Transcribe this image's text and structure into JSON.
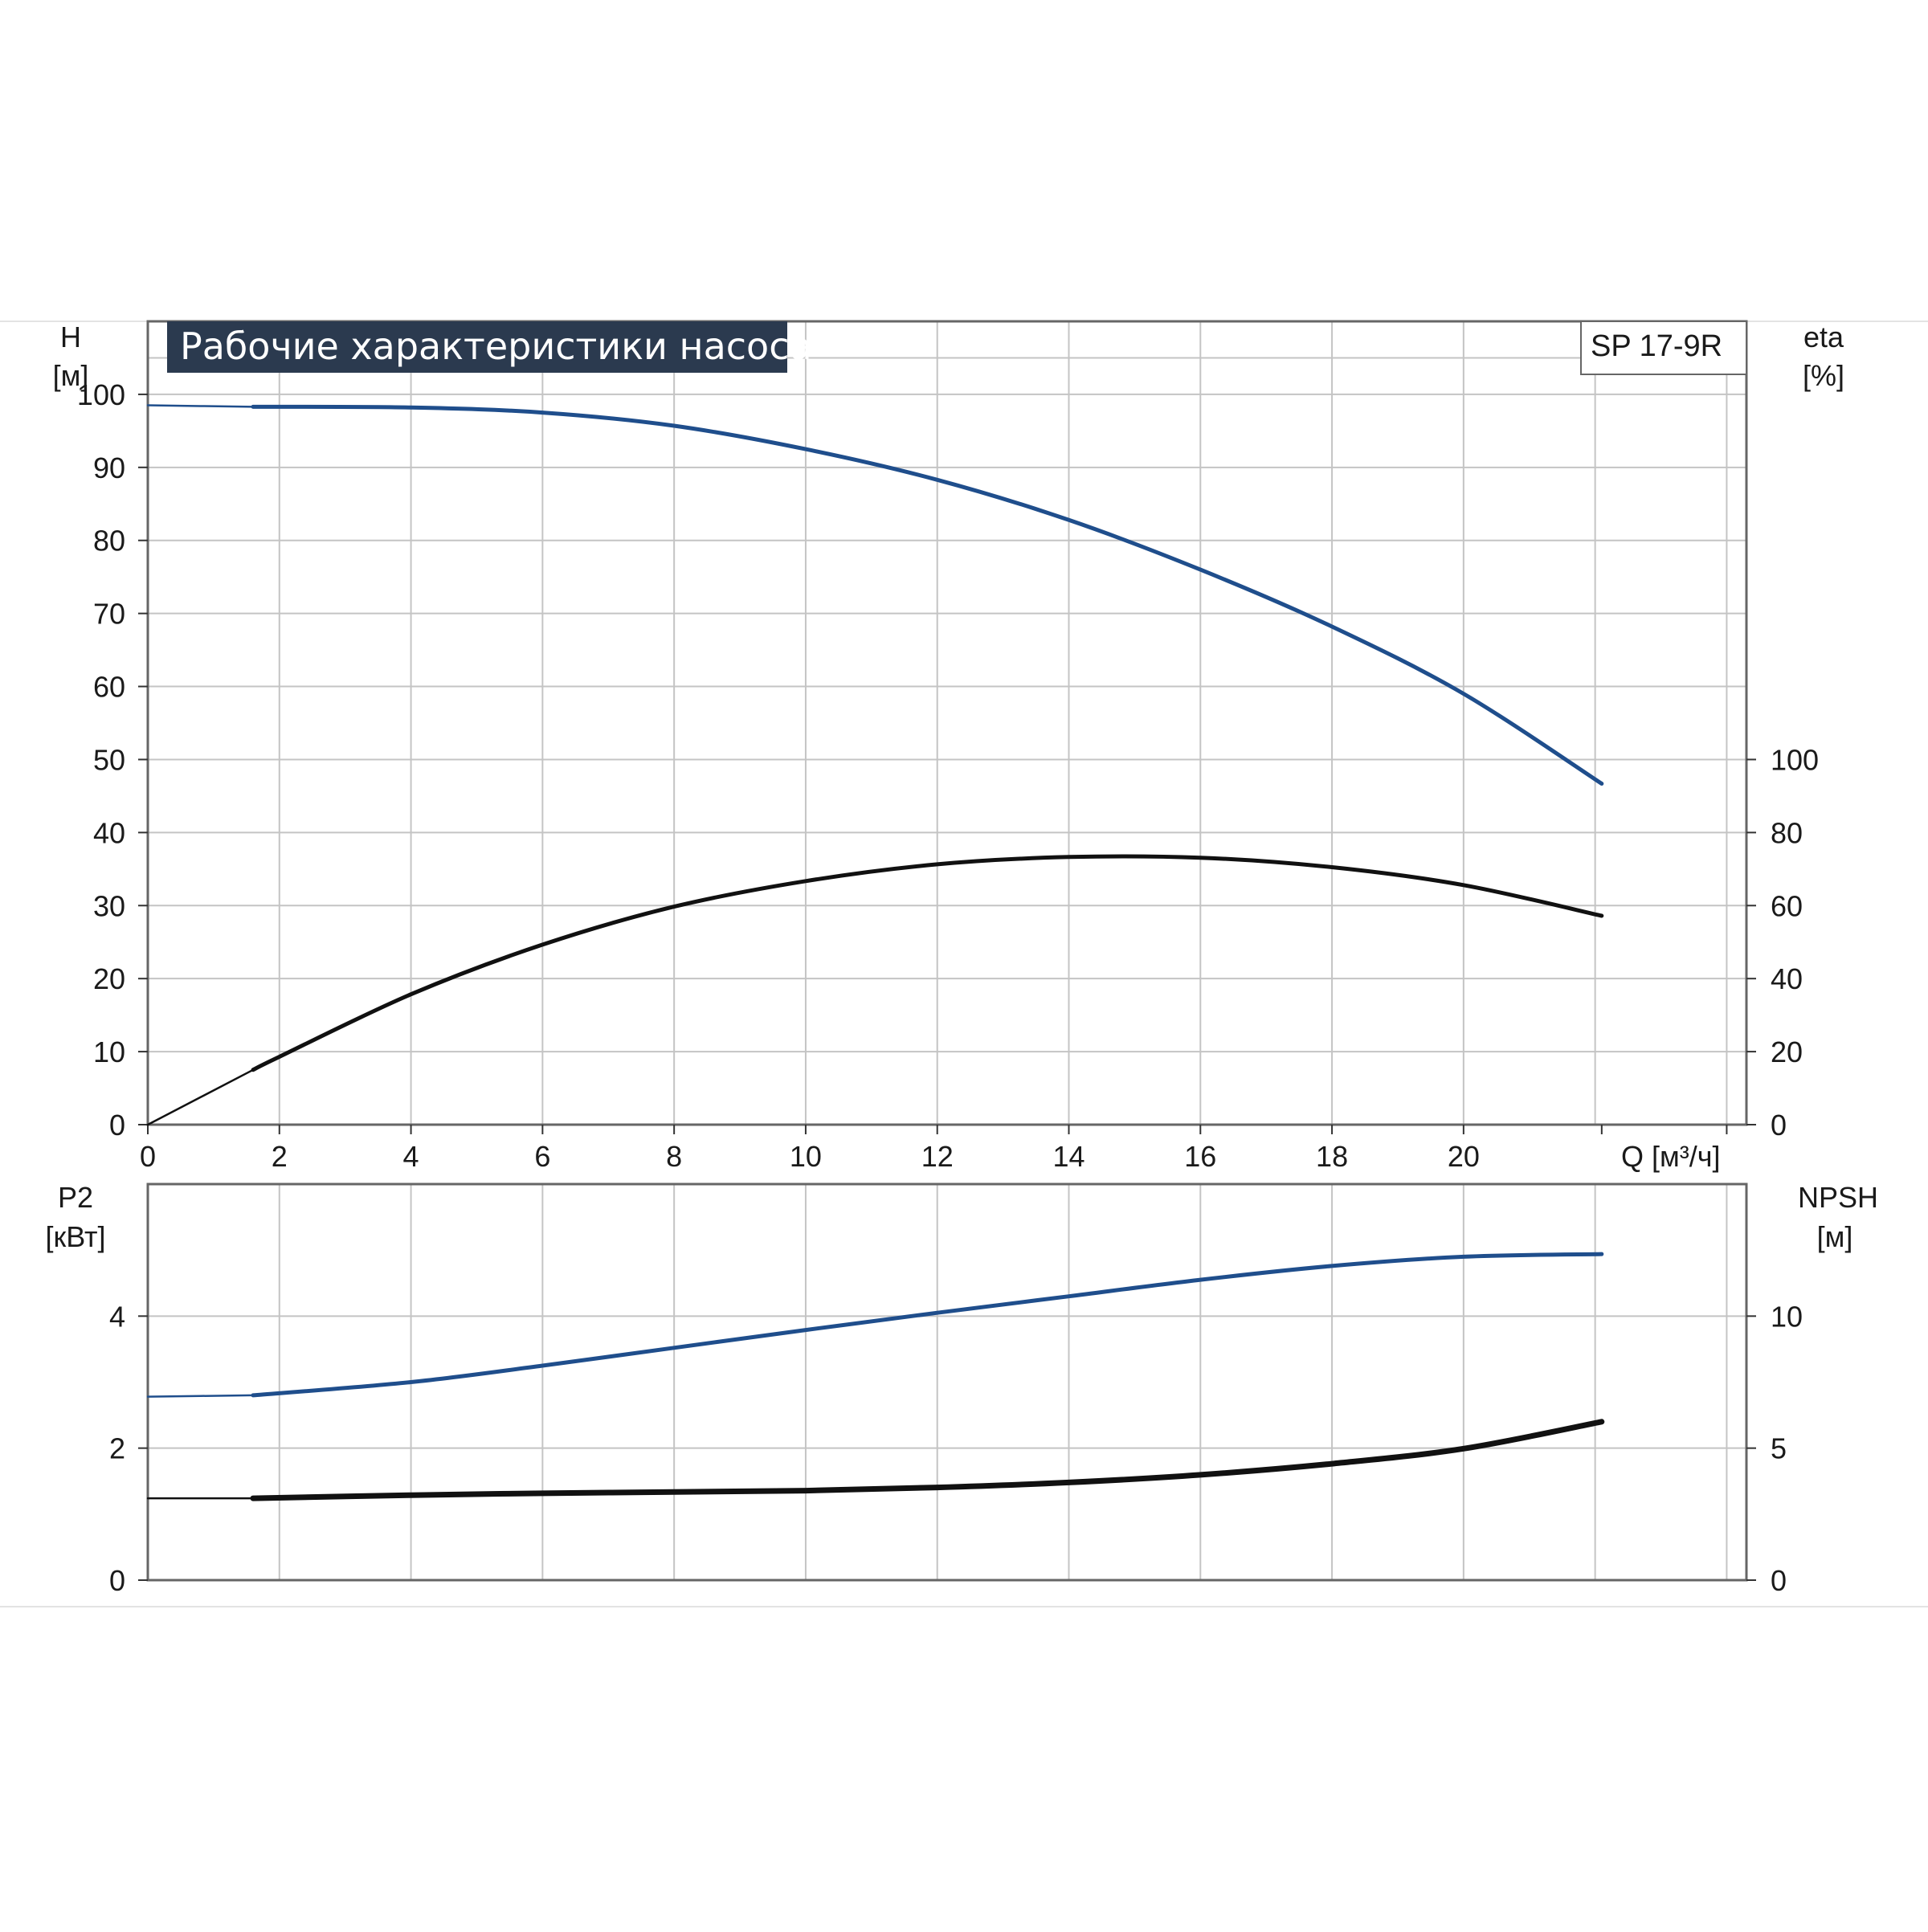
{
  "title": "Рабочие характеристики насоса",
  "model": "SP 17-9R",
  "colors": {
    "blue": "#1f4e8c",
    "black": "#111111",
    "grid": "#c4c4c4",
    "frame": "#666666",
    "title_bg": "#2b3a4f"
  },
  "chart_data": [
    {
      "type": "line",
      "name": "upper",
      "xlabel": "Q [м³/ч]",
      "ylabel_left": [
        "H",
        "[м]"
      ],
      "ylabel_right": [
        "eta",
        "[%]"
      ],
      "xlim": [
        0,
        24.3
      ],
      "ylim_left": [
        0,
        110
      ],
      "ylim_right": [
        0,
        220
      ],
      "grid": true,
      "x_ticks": [
        "0",
        "2",
        "4",
        "6",
        "8",
        "10",
        "12",
        "14",
        "16",
        "18",
        "20"
      ],
      "y_ticks_left": [
        "0",
        "10",
        "20",
        "30",
        "40",
        "50",
        "60",
        "70",
        "80",
        "90",
        "100"
      ],
      "y_ticks_right": [
        "0",
        "20",
        "40",
        "60",
        "80",
        "100"
      ],
      "series": [
        {
          "color": "#1f4e8c",
          "axis": "left",
          "x": [
            0,
            1.6,
            4,
            6,
            8,
            10,
            12,
            14,
            16,
            18,
            20,
            22.1
          ],
          "y": [
            98.5,
            98.3,
            98.2,
            97.5,
            95.7,
            92.5,
            88.3,
            82.8,
            76.0,
            68.2,
            59.0,
            46.7
          ]
        },
        {
          "color": "#111111",
          "axis": "right",
          "x": [
            0,
            1.6,
            2,
            4,
            6,
            8,
            10,
            12,
            14,
            16,
            18,
            20,
            22.1
          ],
          "y": [
            0,
            15,
            18.6,
            35.7,
            49.3,
            59.7,
            66.7,
            71.3,
            73.3,
            73.1,
            70.5,
            65.6,
            57.2
          ]
        }
      ]
    },
    {
      "type": "line",
      "name": "lower",
      "ylabel_left": [
        "P2",
        "[кВт]"
      ],
      "ylabel_right": [
        "NPSH",
        "[м]"
      ],
      "xlim": [
        0,
        24.3
      ],
      "ylim_left": [
        0,
        6
      ],
      "ylim_right": [
        0,
        15
      ],
      "grid": true,
      "y_ticks_left": [
        "0",
        "2",
        "4"
      ],
      "y_ticks_right": [
        "0",
        "5",
        "10"
      ],
      "series": [
        {
          "color": "#1f4e8c",
          "axis": "left",
          "x": [
            0,
            1.6,
            4,
            6,
            8,
            10,
            12,
            14,
            16,
            18,
            20,
            22.1
          ],
          "y": [
            2.78,
            2.8,
            3.0,
            3.25,
            3.52,
            3.79,
            4.05,
            4.3,
            4.55,
            4.76,
            4.9,
            4.94
          ]
        },
        {
          "color": "#111111",
          "axis": "right",
          "x": [
            0,
            1.6,
            4,
            6,
            8,
            10,
            12,
            14,
            16,
            18,
            20,
            22.1
          ],
          "y": [
            3.1,
            3.1,
            3.22,
            3.29,
            3.34,
            3.39,
            3.51,
            3.7,
            3.99,
            4.41,
            4.98,
            6.0
          ]
        }
      ]
    }
  ]
}
